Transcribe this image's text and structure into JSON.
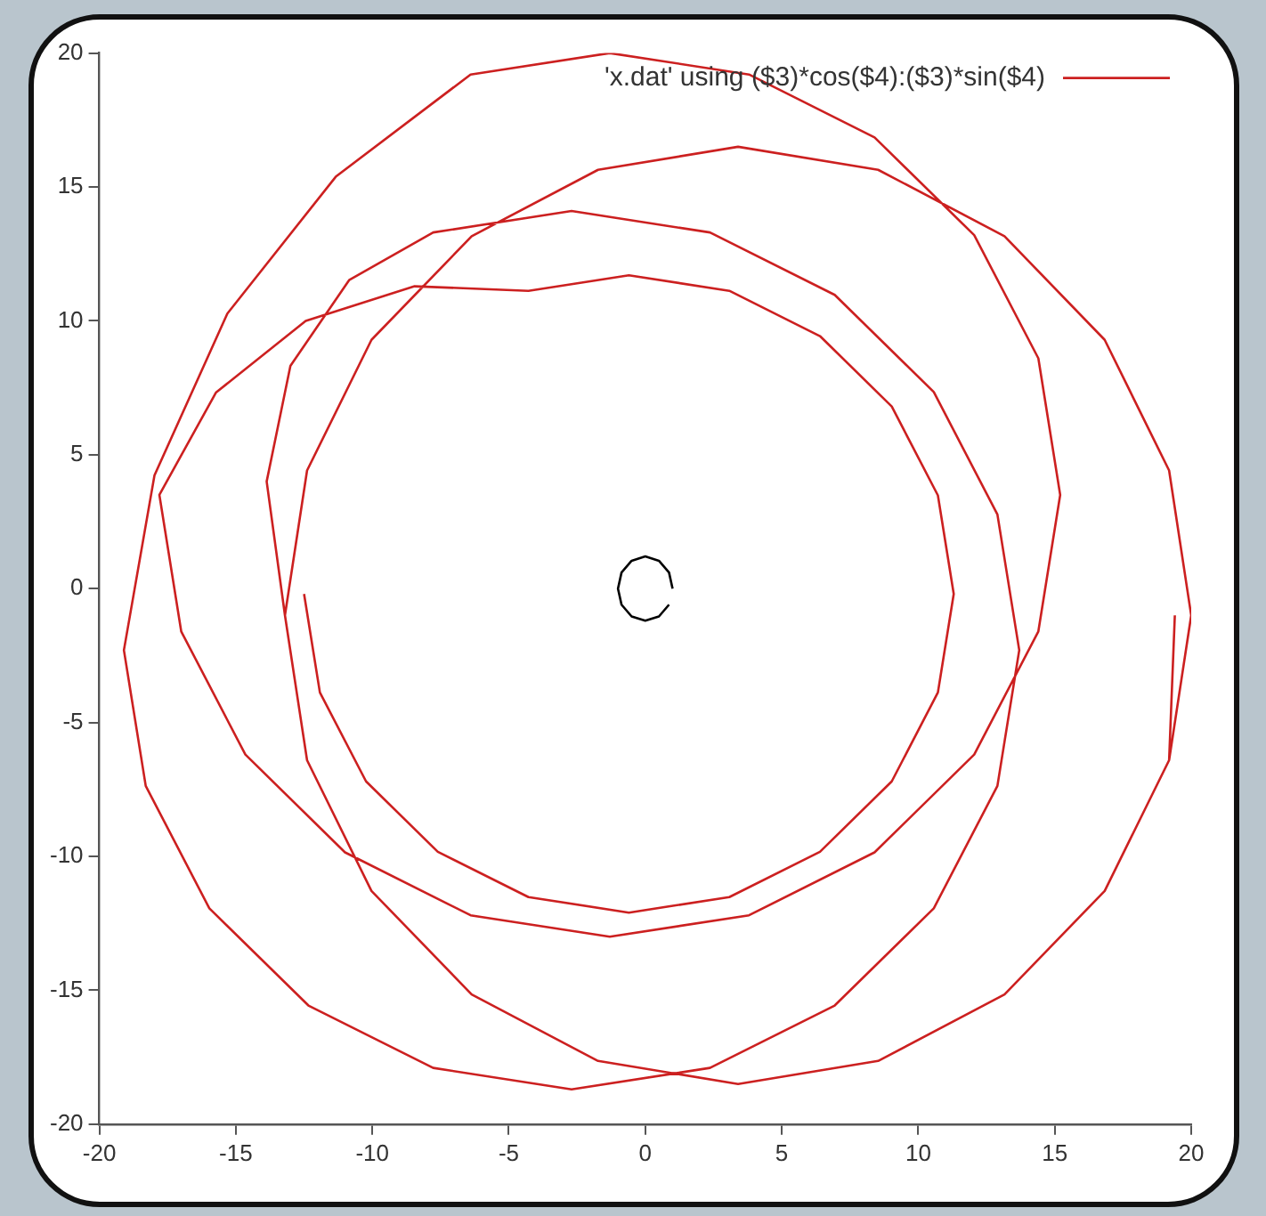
{
  "chart_data": {
    "type": "line",
    "series": [
      {
        "name": "'x.dat' using ($3)*cos($4):($3)*sin($4)",
        "color": "#cc2020",
        "x": [
          -12.5,
          -11.92,
          -10.23,
          -7.6,
          -4.28,
          -0.6,
          3.08,
          6.4,
          9.03,
          10.72,
          11.3,
          10.72,
          9.03,
          6.4,
          3.08,
          -0.6,
          -4.28,
          -8.45,
          -12.44,
          -15.73,
          -17.8,
          -17.0,
          -14.65,
          -11.0,
          -6.4,
          -1.3,
          3.8,
          8.4,
          12.05,
          14.4,
          15.2,
          14.4,
          12.05,
          8.4,
          3.8,
          -1.3,
          -6.4,
          -11.34,
          -15.31,
          -17.98,
          -19.1,
          -18.3,
          -15.97,
          -12.34,
          -7.77,
          -2.7,
          2.37,
          6.94,
          10.57,
          12.9,
          13.7,
          12.9,
          10.57,
          6.94,
          2.37,
          -2.7,
          -7.77,
          -10.85,
          -13.0,
          -13.87,
          -13.2,
          -12.39,
          -10.03,
          -6.36,
          -1.73,
          3.4,
          8.53,
          13.16,
          16.83,
          19.19,
          20,
          19.19,
          16.83,
          13.16,
          8.53,
          3.4,
          -1.73,
          -6.36,
          -10.03,
          -12.39,
          -13.2,
          -12.39,
          -10.03,
          -6.36,
          -1.73,
          3.4,
          8.53,
          13.16,
          16.83,
          19.19,
          19.4
        ],
        "values": [
          -0.2,
          -3.88,
          -7.2,
          -9.83,
          -11.52,
          -12.1,
          -11.52,
          -9.83,
          -7.2,
          -3.88,
          -0.2,
          3.48,
          6.8,
          9.43,
          11.12,
          11.7,
          11.12,
          11.29,
          10.0,
          7.32,
          3.5,
          -1.6,
          -6.2,
          -9.85,
          -12.2,
          -13.0,
          -12.2,
          -9.85,
          -6.2,
          -1.6,
          3.5,
          8.6,
          13.2,
          16.85,
          19.2,
          20.0,
          19.2,
          15.38,
          10.27,
          4.23,
          -2.3,
          -7.37,
          -11.94,
          -15.57,
          -17.9,
          -18.7,
          -17.9,
          -15.57,
          -11.94,
          -7.37,
          -2.3,
          2.77,
          7.34,
          10.97,
          13.3,
          14.1,
          13.3,
          11.52,
          8.32,
          4.0,
          -1,
          -6.41,
          -11.29,
          -15.16,
          -17.64,
          -18.5,
          -17.64,
          -15.16,
          -11.29,
          -6.41,
          -1,
          4.41,
          9.29,
          13.16,
          15.64,
          16.5,
          15.64,
          13.16,
          9.29,
          4.41,
          -1,
          -6.41,
          -11.29,
          -15.16,
          -17.64,
          -18.5,
          -17.64,
          -15.16,
          -11.29,
          -6.41,
          -1
        ]
      },
      {
        "color": "#000000",
        "x": [
          1.0,
          0.87,
          0.5,
          0,
          -0.5,
          -0.87,
          -1.0,
          -0.87,
          -0.5,
          0,
          0.5,
          0.87
        ],
        "values": [
          0,
          0.6,
          1.04,
          1.2,
          1.04,
          0.6,
          0,
          -0.6,
          -1.04,
          -1.2,
          -1.04,
          -0.6
        ]
      }
    ],
    "xlim": [
      -20,
      20
    ],
    "xticks": [
      -20,
      -15,
      -10,
      -5,
      0,
      5,
      10,
      15,
      20
    ],
    "ylim": [
      -20,
      20
    ],
    "yticks": [
      -20,
      -15,
      -10,
      -5,
      0,
      5,
      10,
      15,
      20
    ],
    "grid": false,
    "legend": "top right",
    "marker": "none",
    "line_style": "solid"
  }
}
